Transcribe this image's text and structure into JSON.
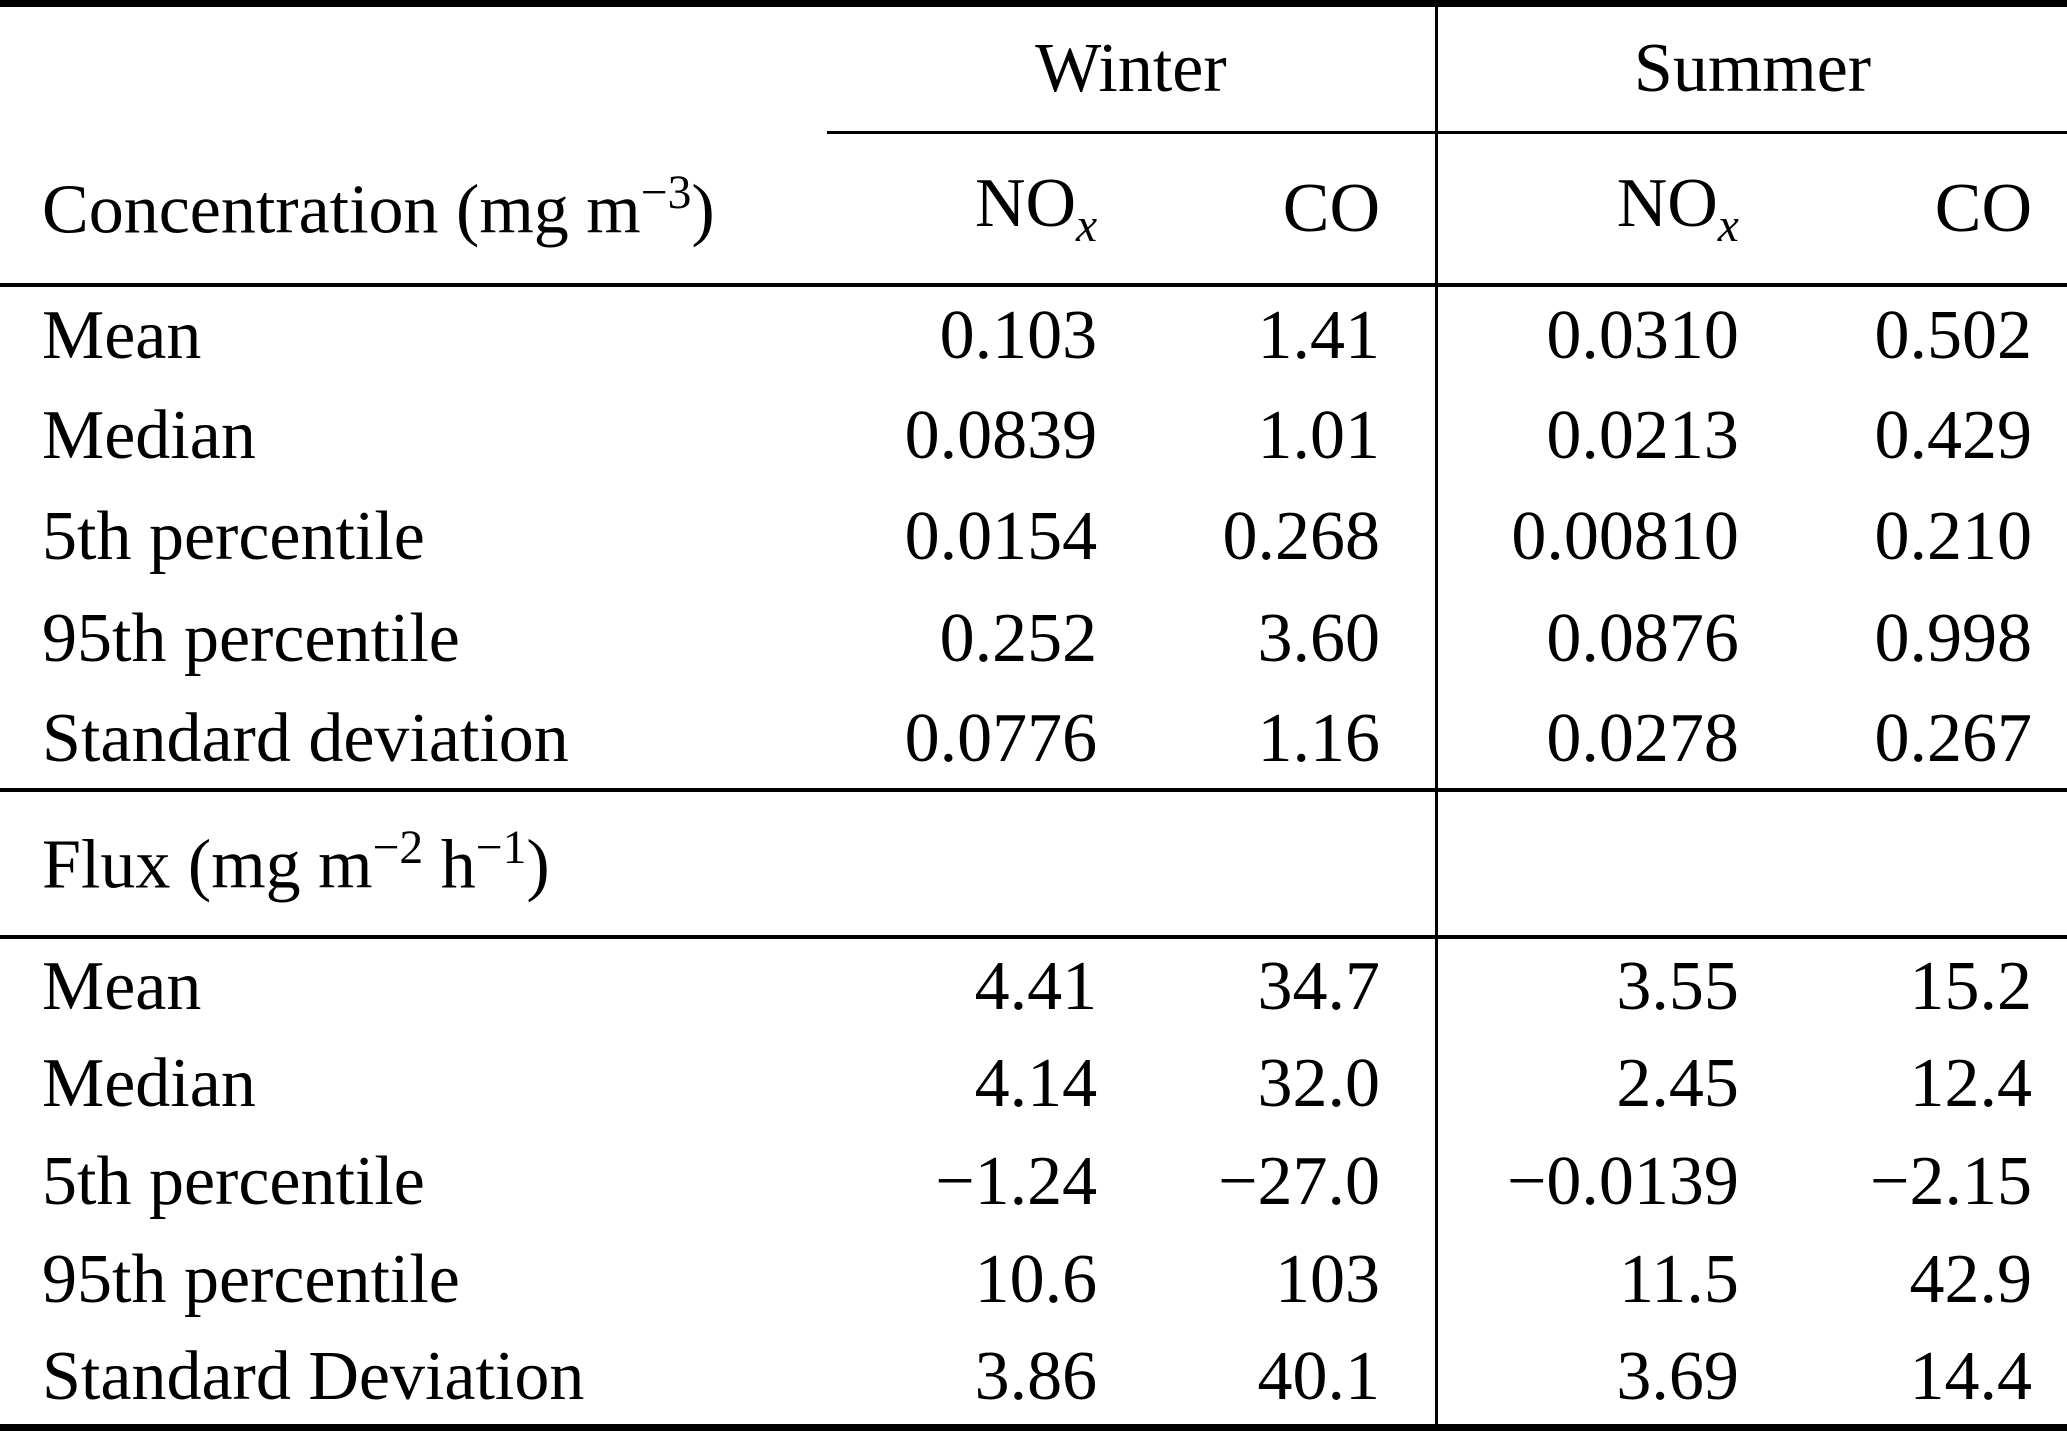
{
  "table": {
    "season_headers": {
      "winter": "Winter",
      "summer": "Summer"
    },
    "species_headers": {
      "nox": {
        "base": "NO",
        "sub": "x"
      },
      "co": "CO"
    },
    "sections": [
      {
        "title_parts": {
          "p1": "Concentration (mg m",
          "s1": "−3",
          "p2": ")"
        },
        "rows": [
          {
            "label": "Mean",
            "values": [
              "0.103",
              "1.41",
              "0.0310",
              "0.502"
            ]
          },
          {
            "label": "Median",
            "values": [
              "0.0839",
              "1.01",
              "0.0213",
              "0.429"
            ]
          },
          {
            "label": "5th percentile",
            "values": [
              "0.0154",
              "0.268",
              "0.00810",
              "0.210"
            ]
          },
          {
            "label": "95th percentile",
            "values": [
              "0.252",
              "3.60",
              "0.0876",
              "0.998"
            ]
          },
          {
            "label": "Standard deviation",
            "values": [
              "0.0776",
              "1.16",
              "0.0278",
              "0.267"
            ]
          }
        ]
      },
      {
        "title_parts": {
          "p1": "Flux (mg m",
          "s1": "−2",
          "p2": " h",
          "s2": "−1",
          "p3": ")"
        },
        "rows": [
          {
            "label": "Mean",
            "values": [
              "4.41",
              "34.7",
              "3.55",
              "15.2"
            ]
          },
          {
            "label": "Median",
            "values": [
              "4.14",
              "32.0",
              "2.45",
              "12.4"
            ]
          },
          {
            "label": "5th percentile",
            "values": [
              "−1.24",
              "−27.0",
              "−0.0139",
              "−2.15"
            ]
          },
          {
            "label": "95th percentile",
            "values": [
              "10.6",
              "103",
              "11.5",
              "42.9"
            ]
          },
          {
            "label": "Standard Deviation",
            "values": [
              "3.86",
              "40.1",
              "3.69",
              "14.4"
            ]
          }
        ]
      }
    ]
  }
}
